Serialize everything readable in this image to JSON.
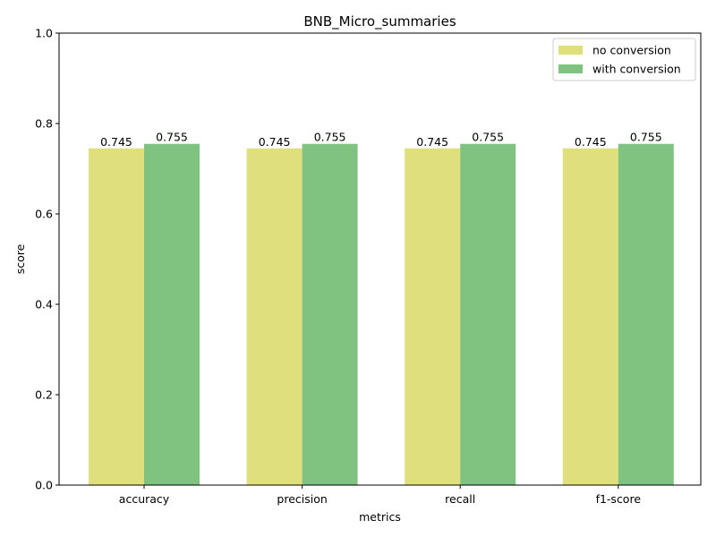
{
  "chart_data": {
    "type": "bar",
    "title": "BNB_Micro_summaries",
    "xlabel": "metrics",
    "ylabel": "score",
    "categories": [
      "accuracy",
      "precision",
      "recall",
      "f1-score"
    ],
    "series": [
      {
        "name": "no conversion",
        "values": [
          0.745,
          0.745,
          0.745,
          0.745
        ],
        "color": "#dfdf7b"
      },
      {
        "name": "with conversion",
        "values": [
          0.755,
          0.755,
          0.755,
          0.755
        ],
        "color": "#80c280"
      }
    ],
    "ylim": [
      0,
      1.0
    ],
    "yticks": [
      0.0,
      0.2,
      0.4,
      0.6,
      0.8,
      1.0
    ],
    "ytick_labels": [
      "0.0",
      "0.2",
      "0.4",
      "0.6",
      "0.8",
      "1.0"
    ],
    "data_labels": {
      "no conversion": [
        "0.745",
        "0.745",
        "0.745",
        "0.745"
      ],
      "with conversion": [
        "0.755",
        "0.755",
        "0.755",
        "0.755"
      ]
    },
    "grid": false,
    "legend_position": "top-right"
  }
}
